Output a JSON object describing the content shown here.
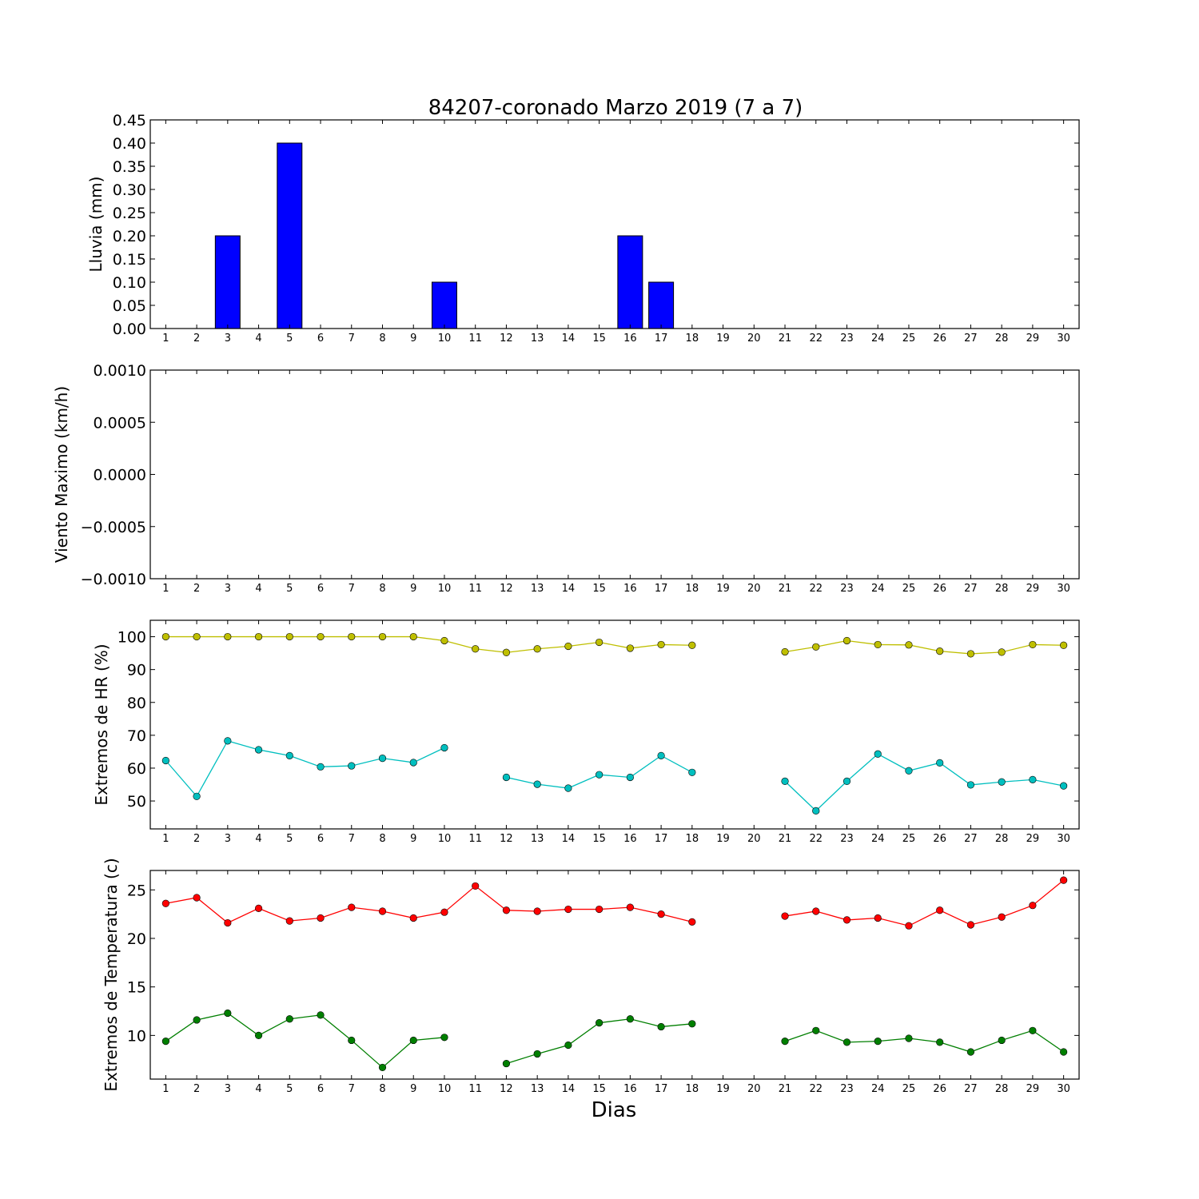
{
  "title": "84207-coronado Marzo 2019  (7 a 7)",
  "xlabel": "Dias",
  "chart_data": [
    {
      "type": "bar",
      "ylabel": "Lluvia (mm)",
      "ylim": [
        0,
        0.45
      ],
      "yticks": [
        "0.00",
        "0.05",
        "0.10",
        "0.15",
        "0.20",
        "0.25",
        "0.30",
        "0.35",
        "0.40",
        "0.45"
      ],
      "xticks": [
        1,
        2,
        3,
        4,
        5,
        6,
        7,
        8,
        9,
        10,
        11,
        12,
        13,
        14,
        15,
        16,
        17,
        18,
        19,
        20,
        21,
        22,
        23,
        24,
        25,
        26,
        27,
        28,
        29,
        30
      ],
      "x": [
        1,
        2,
        3,
        4,
        5,
        6,
        7,
        8,
        9,
        10,
        11,
        12,
        13,
        14,
        15,
        16,
        17,
        18,
        19,
        20,
        21,
        22,
        23,
        24,
        25,
        26,
        27,
        28,
        29,
        30
      ],
      "values": [
        0,
        0,
        0.2,
        0,
        0.4,
        0,
        0,
        0,
        0,
        0.1,
        0,
        0,
        0,
        0,
        0,
        0.2,
        0.1,
        0,
        0,
        0,
        0,
        0,
        0,
        0,
        0,
        0,
        0,
        0,
        0,
        0
      ],
      "color": "#0000ff"
    },
    {
      "type": "line",
      "ylabel": "Viento Maximo (km/h)",
      "ylim": [
        -0.001,
        0.001
      ],
      "yticks": [
        "−0.0010",
        "−0.0005",
        "0.0000",
        "0.0005",
        "0.0010"
      ],
      "xticks": [
        1,
        2,
        3,
        4,
        5,
        6,
        7,
        8,
        9,
        10,
        11,
        12,
        13,
        14,
        15,
        16,
        17,
        18,
        19,
        20,
        21,
        22,
        23,
        24,
        25,
        26,
        27,
        28,
        29,
        30
      ],
      "series": []
    },
    {
      "type": "line",
      "ylabel": "Extremos de HR (%)",
      "ylim": [
        41.5,
        105
      ],
      "yticks": [
        "50",
        "60",
        "70",
        "80",
        "90",
        "100"
      ],
      "xticks": [
        1,
        2,
        3,
        4,
        5,
        6,
        7,
        8,
        9,
        10,
        11,
        12,
        13,
        14,
        15,
        16,
        17,
        18,
        19,
        20,
        21,
        22,
        23,
        24,
        25,
        26,
        27,
        28,
        29,
        30
      ],
      "x": [
        1,
        2,
        3,
        4,
        5,
        6,
        7,
        8,
        9,
        10,
        11,
        12,
        13,
        14,
        15,
        16,
        17,
        18,
        19,
        20,
        21,
        22,
        23,
        24,
        25,
        26,
        27,
        28,
        29,
        30
      ],
      "series": [
        {
          "color": "#bfbf00",
          "values": [
            100,
            100,
            100,
            100,
            100,
            100,
            100,
            100,
            100,
            98.8,
            96.3,
            95.2,
            96.3,
            97.1,
            98.3,
            96.5,
            97.6,
            97.4,
            null,
            null,
            95.4,
            96.9,
            98.8,
            97.6,
            97.5,
            95.6,
            94.8,
            95.3,
            97.6,
            97.4
          ]
        },
        {
          "color": "#00bfbf",
          "values": [
            62.3,
            51.4,
            68.3,
            65.6,
            63.8,
            60.4,
            60.7,
            63.0,
            61.7,
            66.2,
            null,
            57.2,
            55.1,
            53.9,
            58.0,
            57.2,
            63.8,
            58.7,
            null,
            null,
            56.0,
            47.0,
            56.0,
            64.3,
            59.2,
            61.6,
            54.9,
            55.8,
            56.5,
            54.6
          ]
        }
      ]
    },
    {
      "type": "line",
      "ylabel": "Extremos de Temperatura (c)",
      "ylim": [
        5.5,
        27
      ],
      "yticks": [
        "10",
        "15",
        "20",
        "25"
      ],
      "xticks": [
        1,
        2,
        3,
        4,
        5,
        6,
        7,
        8,
        9,
        10,
        11,
        12,
        13,
        14,
        15,
        16,
        17,
        18,
        19,
        20,
        21,
        22,
        23,
        24,
        25,
        26,
        27,
        28,
        29,
        30
      ],
      "x": [
        1,
        2,
        3,
        4,
        5,
        6,
        7,
        8,
        9,
        10,
        11,
        12,
        13,
        14,
        15,
        16,
        17,
        18,
        19,
        20,
        21,
        22,
        23,
        24,
        25,
        26,
        27,
        28,
        29,
        30
      ],
      "series": [
        {
          "color": "#ff0000",
          "values": [
            23.6,
            24.2,
            21.6,
            23.1,
            21.8,
            22.1,
            23.2,
            22.8,
            22.1,
            22.7,
            25.4,
            22.9,
            22.8,
            23.0,
            23.0,
            23.2,
            22.5,
            21.7,
            null,
            null,
            22.3,
            22.8,
            21.9,
            22.1,
            21.3,
            22.9,
            21.4,
            22.2,
            23.4,
            26.0
          ]
        },
        {
          "color": "#007f00",
          "values": [
            9.4,
            11.6,
            12.3,
            10.0,
            11.7,
            12.1,
            9.5,
            6.7,
            9.5,
            9.8,
            null,
            7.1,
            8.1,
            9.0,
            11.3,
            11.7,
            10.9,
            11.2,
            null,
            null,
            9.4,
            10.5,
            9.3,
            9.4,
            9.7,
            9.3,
            8.3,
            9.5,
            10.5,
            8.3
          ]
        }
      ]
    }
  ]
}
